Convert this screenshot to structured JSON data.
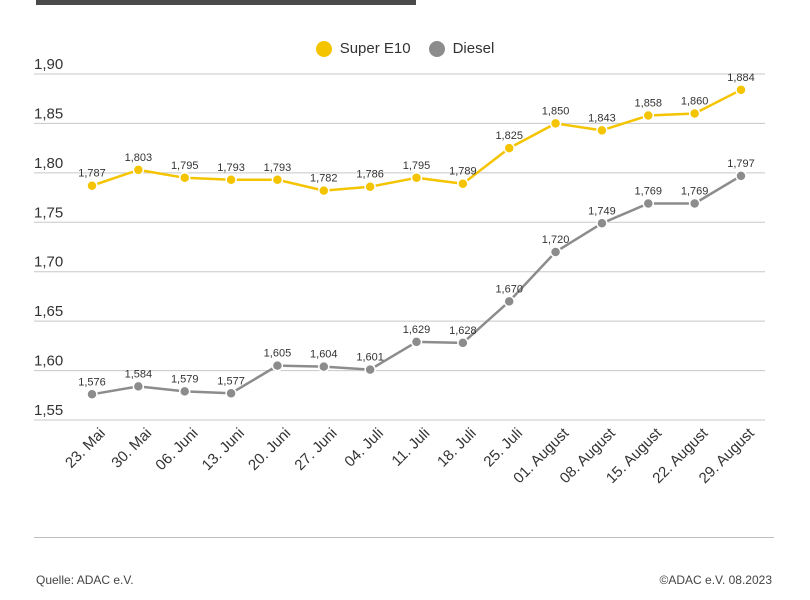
{
  "chart_data": {
    "type": "line",
    "title": "",
    "categories": [
      "23. Mai",
      "30. Mai",
      "06. Juni",
      "13. Juni",
      "20. Juni",
      "27. Juni",
      "04. Juli",
      "11. Juli",
      "18. Juli",
      "25. Juli",
      "01. August",
      "08. August",
      "15. August",
      "22. August",
      "29. August"
    ],
    "series": [
      {
        "name": "Super E10",
        "color": "#f5c400",
        "values": [
          1.787,
          1.803,
          1.795,
          1.793,
          1.793,
          1.782,
          1.786,
          1.795,
          1.789,
          1.825,
          1.85,
          1.843,
          1.858,
          1.86,
          1.884
        ],
        "labels": [
          "1,787",
          "1,803",
          "1,795",
          "1,793",
          "1,793",
          "1,782",
          "1,786",
          "1,795",
          "1,789",
          "1,825",
          "1,850",
          "1,843",
          "1,858",
          "1,860",
          "1,884"
        ]
      },
      {
        "name": "Diesel",
        "color": "#8c8c8c",
        "values": [
          1.576,
          1.584,
          1.579,
          1.577,
          1.605,
          1.604,
          1.601,
          1.629,
          1.628,
          1.67,
          1.72,
          1.749,
          1.769,
          1.769,
          1.797
        ],
        "labels": [
          "1,576",
          "1,584",
          "1,579",
          "1,577",
          "1,605",
          "1,604",
          "1,601",
          "1,629",
          "1,628",
          "1,670",
          "1,720",
          "1,749",
          "1,769",
          "1,769",
          "1,797"
        ]
      }
    ],
    "yticks": [
      1.55,
      1.6,
      1.65,
      1.7,
      1.75,
      1.8,
      1.85,
      1.9
    ],
    "ytick_labels": [
      "1,55",
      "1,60",
      "1,65",
      "1,70",
      "1,75",
      "1,80",
      "1,85",
      "1,90"
    ],
    "ylim": [
      1.55,
      1.9
    ],
    "grid": true,
    "legend_position": "top-center"
  },
  "footer": {
    "source": "Quelle: ADAC e.V.",
    "copyright": "©ADAC e.V. 08.2023"
  }
}
